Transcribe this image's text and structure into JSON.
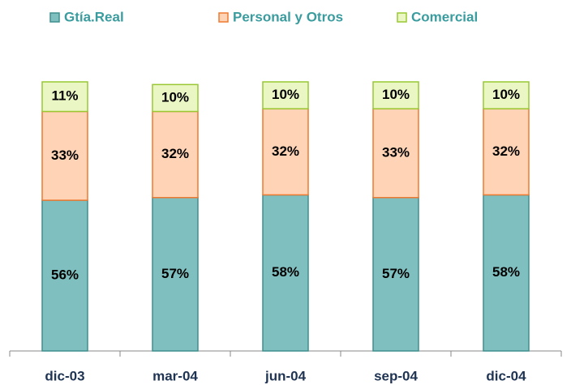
{
  "chart_data": {
    "type": "stacked_bar",
    "categories": [
      "dic-03",
      "mar-04",
      "jun-04",
      "sep-04",
      "dic-04"
    ],
    "series": [
      {
        "name": "Gtía.Real",
        "color": "#80bfbf",
        "stroke": "#3f8f8f",
        "values": [
          56,
          57,
          58,
          57,
          58
        ],
        "value_labels": [
          "56%",
          "57%",
          "58%",
          "57%",
          "58%"
        ]
      },
      {
        "name": "Personal y Otros",
        "color": "#ffd3b6",
        "stroke": "#ee7a30",
        "values": [
          33,
          32,
          32,
          33,
          32
        ],
        "value_labels": [
          "33%",
          "32%",
          "32%",
          "33%",
          "32%"
        ]
      },
      {
        "name": "Comercial",
        "color": "#eaf6c4",
        "stroke": "#99c832",
        "values": [
          11,
          10,
          10,
          10,
          10
        ],
        "value_labels": [
          "11%",
          "10%",
          "10%",
          "10%",
          "10%"
        ]
      }
    ],
    "legend": "top"
  }
}
